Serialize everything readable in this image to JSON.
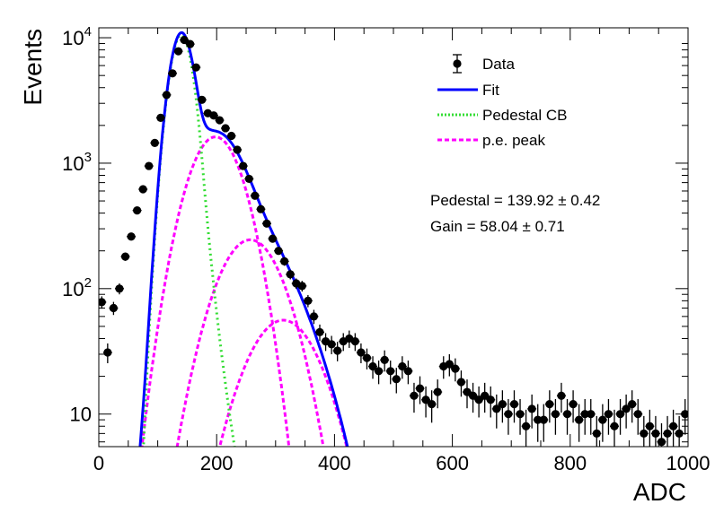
{
  "chart_data": {
    "type": "scatter",
    "xlabel": "ADC",
    "ylabel": "Events",
    "xlim": [
      0,
      1000
    ],
    "ylim": [
      5.5,
      12000
    ],
    "yscale": "log",
    "x_ticks": [
      "0",
      "200",
      "400",
      "600",
      "800",
      "1000"
    ],
    "y_ticks": [
      {
        "base": "10",
        "exp": "",
        "value": 10
      },
      {
        "base": "10",
        "exp": "2",
        "value": 100
      },
      {
        "base": "10",
        "exp": "3",
        "value": 1000
      },
      {
        "base": "10",
        "exp": "4",
        "value": 10000
      }
    ],
    "legend": {
      "position": "top-right",
      "entries": [
        {
          "label": "Data",
          "style": "marker",
          "color": "#000000"
        },
        {
          "label": "Fit",
          "style": "solid",
          "color": "#0000ff"
        },
        {
          "label": "Pedestal CB",
          "style": "dotted",
          "color": "#33dd33"
        },
        {
          "label": "p.e. peak",
          "style": "dashed",
          "color": "#ff00ff"
        }
      ]
    },
    "annotations": [
      {
        "text": "Pedestal = 139.92 ± 0.42"
      },
      {
        "text": "Gain = 58.04 ± 0.71"
      }
    ],
    "pedestal": {
      "mean": 139.92,
      "error": 0.42
    },
    "gain": {
      "value": 58.04,
      "error": 0.71
    },
    "series": [
      {
        "name": "Data",
        "style": "marker",
        "color": "#000000",
        "x": [
          5,
          15,
          25,
          35,
          45,
          55,
          65,
          75,
          85,
          95,
          105,
          115,
          125,
          135,
          145,
          155,
          165,
          175,
          185,
          195,
          205,
          215,
          225,
          235,
          245,
          255,
          265,
          275,
          285,
          295,
          305,
          315,
          325,
          335,
          345,
          355,
          365,
          375,
          385,
          395,
          405,
          415,
          425,
          435,
          445,
          455,
          465,
          475,
          485,
          495,
          505,
          515,
          525,
          535,
          545,
          555,
          565,
          575,
          585,
          595,
          605,
          615,
          625,
          635,
          645,
          655,
          665,
          675,
          685,
          695,
          705,
          715,
          725,
          735,
          745,
          755,
          765,
          775,
          785,
          795,
          805,
          815,
          825,
          835,
          845,
          855,
          865,
          875,
          885,
          895,
          905,
          915,
          925,
          935,
          945,
          955,
          965,
          975,
          985,
          995
        ],
        "y": [
          78,
          31,
          70,
          100,
          180,
          260,
          420,
          620,
          950,
          1450,
          2300,
          3500,
          5200,
          7800,
          9600,
          8900,
          5800,
          3200,
          2500,
          2400,
          2200,
          1900,
          1650,
          1280,
          950,
          750,
          550,
          430,
          330,
          250,
          200,
          165,
          130,
          110,
          105,
          80,
          60,
          45,
          38,
          36,
          32,
          38,
          40,
          38,
          31,
          28,
          24,
          22,
          27,
          22,
          19,
          24,
          22,
          14,
          16,
          13,
          12,
          15,
          24,
          25,
          23,
          18,
          15,
          14,
          13,
          14,
          13,
          11,
          12,
          10,
          12,
          10,
          8,
          11,
          9,
          9,
          12,
          10,
          14,
          10,
          12,
          9,
          10,
          10,
          7,
          9,
          10,
          8,
          10,
          11,
          12,
          10,
          7,
          8,
          7,
          6,
          7,
          8,
          7,
          10
        ]
      },
      {
        "name": "Fit",
        "style": "solid",
        "color": "#0000ff"
      },
      {
        "name": "Pedestal CB",
        "style": "dotted",
        "color": "#33dd33"
      },
      {
        "name": "p.e. peak",
        "style": "dashed",
        "color": "#ff00ff"
      }
    ]
  }
}
